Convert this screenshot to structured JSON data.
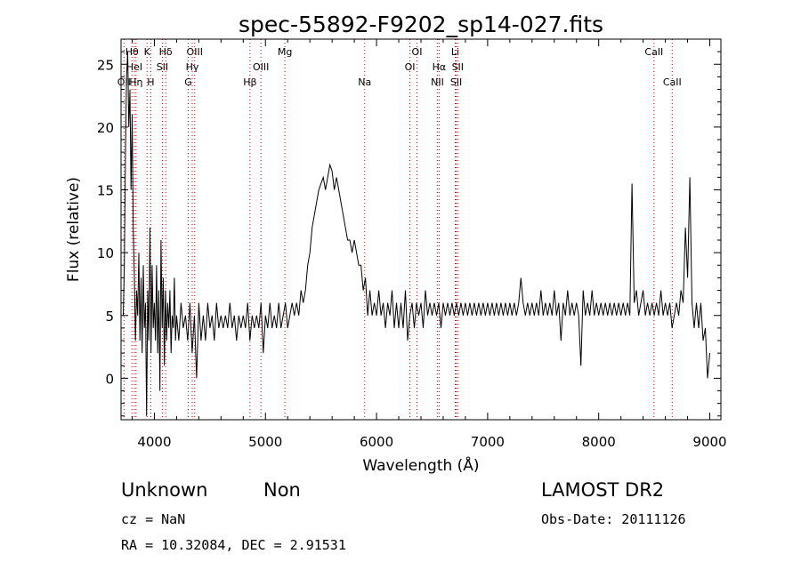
{
  "chart_data": {
    "type": "line",
    "title": "spec-55892-F9202_sp14-027.fits",
    "xlabel": "Wavelength (Å)",
    "ylabel": "Flux (relative)",
    "xlim": [
      3700,
      9100
    ],
    "ylim": [
      -3.3,
      27
    ],
    "x_ticks": [
      4000,
      5000,
      6000,
      7000,
      8000,
      9000
    ],
    "y_ticks": [
      0,
      5,
      10,
      15,
      20,
      25
    ],
    "grid": false,
    "line_color": "#000000",
    "marker_color": "#cc0000",
    "spectral_lines": [
      {
        "label": "Hθ",
        "wavelength": 3798,
        "row": 1
      },
      {
        "label": "OII",
        "wavelength": 3727,
        "row": 3
      },
      {
        "label": "HeI",
        "wavelength": 3820,
        "row": 2
      },
      {
        "label": "Hη",
        "wavelength": 3835,
        "row": 3
      },
      {
        "label": "K",
        "wavelength": 3934,
        "row": 1
      },
      {
        "label": "H",
        "wavelength": 3968,
        "row": 3
      },
      {
        "label": "SII",
        "wavelength": 4072,
        "row": 2
      },
      {
        "label": "Hδ",
        "wavelength": 4102,
        "row": 1
      },
      {
        "label": "OIII",
        "wavelength": 4363,
        "row": 1
      },
      {
        "label": "Hγ",
        "wavelength": 4341,
        "row": 2
      },
      {
        "label": "G",
        "wavelength": 4305,
        "row": 3
      },
      {
        "label": "OIII",
        "wavelength": 4959,
        "row": 2
      },
      {
        "label": "Hβ",
        "wavelength": 4861,
        "row": 3
      },
      {
        "label": "Mg",
        "wavelength": 5175,
        "row": 1
      },
      {
        "label": "Na",
        "wavelength": 5893,
        "row": 3
      },
      {
        "label": "OI",
        "wavelength": 6364,
        "row": 1
      },
      {
        "label": "OI",
        "wavelength": 6300,
        "row": 2
      },
      {
        "label": "Hα",
        "wavelength": 6563,
        "row": 2
      },
      {
        "label": "NII",
        "wavelength": 6548,
        "row": 3
      },
      {
        "label": "Li",
        "wavelength": 6708,
        "row": 1
      },
      {
        "label": "SII",
        "wavelength": 6731,
        "row": 2
      },
      {
        "label": "SII",
        "wavelength": 6717,
        "row": 3
      },
      {
        "label": "CaII",
        "wavelength": 8498,
        "row": 1
      },
      {
        "label": "CaII",
        "wavelength": 8662,
        "row": 3
      }
    ],
    "series": [
      {
        "points": [
          [
            3720,
            5
          ],
          [
            3730,
            9
          ],
          [
            3740,
            18
          ],
          [
            3750,
            24
          ],
          [
            3760,
            26
          ],
          [
            3770,
            20
          ],
          [
            3780,
            23
          ],
          [
            3790,
            15
          ],
          [
            3800,
            21
          ],
          [
            3810,
            12
          ],
          [
            3820,
            8
          ],
          [
            3830,
            3
          ],
          [
            3840,
            7
          ],
          [
            3850,
            5
          ],
          [
            3860,
            10
          ],
          [
            3870,
            3
          ],
          [
            3880,
            8
          ],
          [
            3890,
            2
          ],
          [
            3900,
            9
          ],
          [
            3910,
            4
          ],
          [
            3920,
            6
          ],
          [
            3930,
            -3
          ],
          [
            3940,
            7
          ],
          [
            3950,
            3
          ],
          [
            3960,
            12
          ],
          [
            3970,
            2
          ],
          [
            3980,
            9
          ],
          [
            3990,
            4
          ],
          [
            4000,
            6
          ],
          [
            4010,
            3
          ],
          [
            4020,
            9
          ],
          [
            4030,
            2
          ],
          [
            4040,
            7
          ],
          [
            4050,
            -1
          ],
          [
            4060,
            11
          ],
          [
            4070,
            4
          ],
          [
            4080,
            8
          ],
          [
            4090,
            1
          ],
          [
            4100,
            7
          ],
          [
            4110,
            3
          ],
          [
            4120,
            6
          ],
          [
            4130,
            4
          ],
          [
            4140,
            7
          ],
          [
            4150,
            2
          ],
          [
            4160,
            5
          ],
          [
            4170,
            4
          ],
          [
            4180,
            8
          ],
          [
            4190,
            3
          ],
          [
            4200,
            5
          ],
          [
            4220,
            3
          ],
          [
            4240,
            6
          ],
          [
            4260,
            4
          ],
          [
            4280,
            5
          ],
          [
            4300,
            3
          ],
          [
            4320,
            6
          ],
          [
            4340,
            2
          ],
          [
            4360,
            5
          ],
          [
            4380,
            0
          ],
          [
            4400,
            6
          ],
          [
            4420,
            3
          ],
          [
            4440,
            5
          ],
          [
            4460,
            3
          ],
          [
            4480,
            6
          ],
          [
            4500,
            4
          ],
          [
            4520,
            5
          ],
          [
            4540,
            3
          ],
          [
            4560,
            6
          ],
          [
            4580,
            4
          ],
          [
            4600,
            5
          ],
          [
            4620,
            4
          ],
          [
            4640,
            5
          ],
          [
            4660,
            4
          ],
          [
            4680,
            6
          ],
          [
            4700,
            4
          ],
          [
            4720,
            5
          ],
          [
            4740,
            3
          ],
          [
            4760,
            5
          ],
          [
            4780,
            4
          ],
          [
            4800,
            5
          ],
          [
            4820,
            4
          ],
          [
            4840,
            6
          ],
          [
            4860,
            3
          ],
          [
            4880,
            5
          ],
          [
            4900,
            4
          ],
          [
            4920,
            5
          ],
          [
            4940,
            4
          ],
          [
            4960,
            6
          ],
          [
            4980,
            2
          ],
          [
            5000,
            5
          ],
          [
            5020,
            4
          ],
          [
            5040,
            6
          ],
          [
            5060,
            4
          ],
          [
            5080,
            5
          ],
          [
            5100,
            4
          ],
          [
            5120,
            6
          ],
          [
            5140,
            4
          ],
          [
            5160,
            5
          ],
          [
            5180,
            6
          ],
          [
            5200,
            4
          ],
          [
            5220,
            5
          ],
          [
            5240,
            6
          ],
          [
            5260,
            5
          ],
          [
            5280,
            6
          ],
          [
            5300,
            5
          ],
          [
            5320,
            7
          ],
          [
            5340,
            6
          ],
          [
            5360,
            7
          ],
          [
            5380,
            9
          ],
          [
            5400,
            10
          ],
          [
            5420,
            12
          ],
          [
            5440,
            13
          ],
          [
            5460,
            14
          ],
          [
            5480,
            15
          ],
          [
            5500,
            15.5
          ],
          [
            5520,
            16
          ],
          [
            5540,
            15
          ],
          [
            5560,
            16
          ],
          [
            5580,
            17
          ],
          [
            5600,
            16.5
          ],
          [
            5620,
            15
          ],
          [
            5640,
            16
          ],
          [
            5660,
            15
          ],
          [
            5680,
            14
          ],
          [
            5700,
            13
          ],
          [
            5720,
            12
          ],
          [
            5740,
            11
          ],
          [
            5760,
            11
          ],
          [
            5780,
            10
          ],
          [
            5800,
            11
          ],
          [
            5820,
            10
          ],
          [
            5840,
            9
          ],
          [
            5860,
            9
          ],
          [
            5880,
            7
          ],
          [
            5900,
            8
          ],
          [
            5920,
            5
          ],
          [
            5940,
            7
          ],
          [
            5960,
            5
          ],
          [
            5980,
            6
          ],
          [
            6000,
            5
          ],
          [
            6020,
            7
          ],
          [
            6040,
            5
          ],
          [
            6060,
            6
          ],
          [
            6080,
            4
          ],
          [
            6100,
            6
          ],
          [
            6120,
            5
          ],
          [
            6140,
            7
          ],
          [
            6160,
            4
          ],
          [
            6180,
            6
          ],
          [
            6200,
            4
          ],
          [
            6220,
            6
          ],
          [
            6240,
            4
          ],
          [
            6260,
            7
          ],
          [
            6280,
            3
          ],
          [
            6300,
            5
          ],
          [
            6320,
            6
          ],
          [
            6340,
            4
          ],
          [
            6360,
            6
          ],
          [
            6380,
            5
          ],
          [
            6400,
            6
          ],
          [
            6420,
            4
          ],
          [
            6440,
            7
          ],
          [
            6460,
            5
          ],
          [
            6480,
            6
          ],
          [
            6500,
            5
          ],
          [
            6520,
            6
          ],
          [
            6540,
            5
          ],
          [
            6560,
            6
          ],
          [
            6580,
            4
          ],
          [
            6600,
            6
          ],
          [
            6620,
            5
          ],
          [
            6640,
            6
          ],
          [
            6660,
            5
          ],
          [
            6680,
            6
          ],
          [
            6700,
            5
          ],
          [
            6720,
            6
          ],
          [
            6740,
            5
          ],
          [
            6760,
            6
          ],
          [
            6780,
            5
          ],
          [
            6800,
            6
          ],
          [
            6820,
            5
          ],
          [
            6840,
            6
          ],
          [
            6860,
            5
          ],
          [
            6880,
            6
          ],
          [
            6900,
            5
          ],
          [
            6920,
            6
          ],
          [
            6940,
            5
          ],
          [
            6960,
            6
          ],
          [
            6980,
            5
          ],
          [
            7000,
            6
          ],
          [
            7020,
            5
          ],
          [
            7040,
            6
          ],
          [
            7060,
            5
          ],
          [
            7080,
            6
          ],
          [
            7100,
            5
          ],
          [
            7120,
            6
          ],
          [
            7140,
            5
          ],
          [
            7160,
            6
          ],
          [
            7180,
            5
          ],
          [
            7200,
            6
          ],
          [
            7220,
            5
          ],
          [
            7240,
            6
          ],
          [
            7260,
            5
          ],
          [
            7280,
            6
          ],
          [
            7300,
            8
          ],
          [
            7320,
            6
          ],
          [
            7340,
            5
          ],
          [
            7360,
            6
          ],
          [
            7380,
            5
          ],
          [
            7400,
            6
          ],
          [
            7420,
            5
          ],
          [
            7440,
            6
          ],
          [
            7460,
            5
          ],
          [
            7480,
            7
          ],
          [
            7500,
            5
          ],
          [
            7520,
            6
          ],
          [
            7540,
            5
          ],
          [
            7560,
            6
          ],
          [
            7580,
            5
          ],
          [
            7600,
            7
          ],
          [
            7620,
            5
          ],
          [
            7640,
            6
          ],
          [
            7660,
            3
          ],
          [
            7680,
            6
          ],
          [
            7700,
            5
          ],
          [
            7720,
            7
          ],
          [
            7740,
            5
          ],
          [
            7760,
            6
          ],
          [
            7780,
            5
          ],
          [
            7800,
            6
          ],
          [
            7820,
            5
          ],
          [
            7840,
            1
          ],
          [
            7860,
            7
          ],
          [
            7880,
            5
          ],
          [
            7900,
            6
          ],
          [
            7920,
            5
          ],
          [
            7940,
            7
          ],
          [
            7960,
            5
          ],
          [
            7980,
            6
          ],
          [
            8000,
            5
          ],
          [
            8020,
            6
          ],
          [
            8040,
            5
          ],
          [
            8060,
            6
          ],
          [
            8080,
            5
          ],
          [
            8100,
            6
          ],
          [
            8120,
            5
          ],
          [
            8140,
            6
          ],
          [
            8160,
            5
          ],
          [
            8180,
            6
          ],
          [
            8200,
            5
          ],
          [
            8220,
            6
          ],
          [
            8240,
            5
          ],
          [
            8260,
            6
          ],
          [
            8280,
            5
          ],
          [
            8300,
            15.5
          ],
          [
            8320,
            6
          ],
          [
            8340,
            7
          ],
          [
            8360,
            5
          ],
          [
            8380,
            6
          ],
          [
            8400,
            7
          ],
          [
            8420,
            5
          ],
          [
            8440,
            6
          ],
          [
            8460,
            5
          ],
          [
            8480,
            6
          ],
          [
            8500,
            5
          ],
          [
            8520,
            6
          ],
          [
            8540,
            5
          ],
          [
            8560,
            7
          ],
          [
            8580,
            5
          ],
          [
            8600,
            6
          ],
          [
            8620,
            5
          ],
          [
            8640,
            6
          ],
          [
            8660,
            4
          ],
          [
            8680,
            5
          ],
          [
            8700,
            6
          ],
          [
            8720,
            5
          ],
          [
            8740,
            7
          ],
          [
            8760,
            6
          ],
          [
            8780,
            12
          ],
          [
            8800,
            8
          ],
          [
            8820,
            16
          ],
          [
            8840,
            6
          ],
          [
            8860,
            4
          ],
          [
            8880,
            6
          ],
          [
            8900,
            4
          ],
          [
            8920,
            6
          ],
          [
            8940,
            3
          ],
          [
            8960,
            4
          ],
          [
            8980,
            0
          ],
          [
            9000,
            2
          ]
        ]
      }
    ]
  },
  "info": {
    "class": "Unknown",
    "subclass": "Non",
    "survey": "LAMOST DR2",
    "cz": "cz = NaN",
    "obs_date": "Obs-Date: 20111126",
    "coords": "RA =   10.32084, DEC =    2.91531"
  }
}
